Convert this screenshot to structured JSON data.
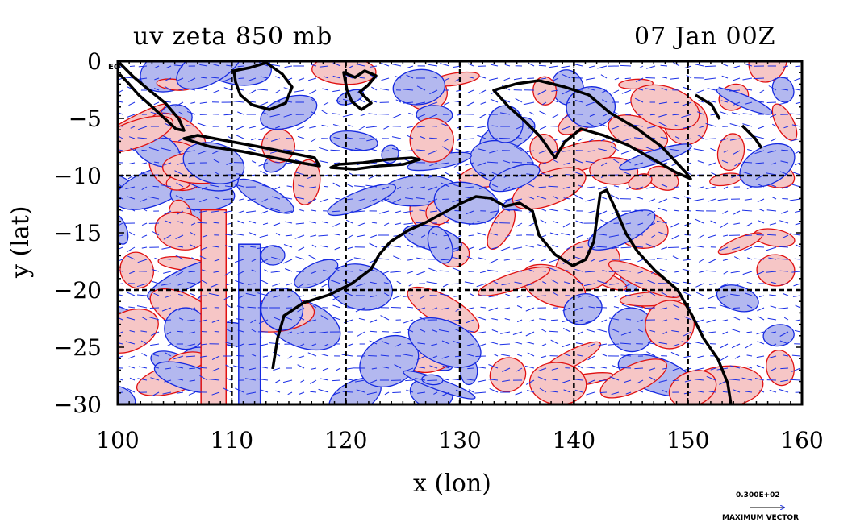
{
  "title_left": "uv zeta 850 mb",
  "title_right": "07 Jan 00Z",
  "xlabel": "x (lon)",
  "ylabel": "y (lat)",
  "corner_label": "EQ",
  "vector_legend": {
    "value": "0.300E+02",
    "caption": "MAXIMUM VECTOR"
  },
  "colors": {
    "positive_fill": "#f6c6c6",
    "positive_contour": "#e01010",
    "negative_fill": "#b3b8ef",
    "negative_contour": "#1428e0",
    "vector": "#1a2ee6",
    "coast": "#000000",
    "grid": "#000000"
  },
  "chart_data": {
    "type": "map",
    "title": "uv zeta 850 mb",
    "xlabel": "x (lon)",
    "ylabel": "y (lat)",
    "xlim": [
      100,
      160
    ],
    "ylim": [
      -30,
      0
    ],
    "xticks": [
      100,
      110,
      120,
      130,
      140,
      150,
      160
    ],
    "yticks": [
      0,
      -5,
      -10,
      -15,
      -20,
      -25,
      -30
    ],
    "grid_lon": [
      110,
      120,
      130,
      140,
      150
    ],
    "grid_lat": [
      -10,
      -20
    ],
    "grid": true,
    "fields": [
      "850 mb wind vectors (u,v)",
      "relative vorticity zeta (filled contours)"
    ]
  }
}
